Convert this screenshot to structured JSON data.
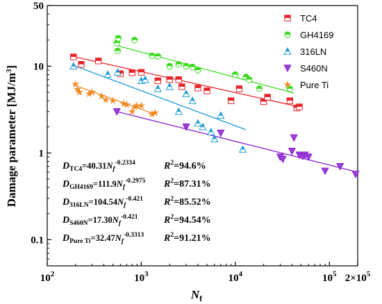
{
  "chart_data": {
    "type": "scatter",
    "xscale": "log",
    "yscale": "log",
    "xlim": [
      100,
      200000
    ],
    "ylim": [
      0.05,
      50
    ],
    "xlabel": "N",
    "xlabel_sub": "f",
    "ylabel": "Damage parameter [MJ/m",
    "ylabel_sup": "3",
    "ylabel_end": "]",
    "x_ticks": [
      {
        "value": 100,
        "base": "10",
        "exp": "2"
      },
      {
        "value": 1000,
        "base": "10",
        "exp": "3"
      },
      {
        "value": 10000,
        "base": "10",
        "exp": "4"
      },
      {
        "value": 100000,
        "base": "10",
        "exp": "5"
      },
      {
        "value": 200000,
        "base": "2×10",
        "exp": "5"
      }
    ],
    "y_ticks": [
      {
        "value": 0.1,
        "label": "0.1"
      },
      {
        "value": 1,
        "label": "1"
      },
      {
        "value": 10,
        "label": "10"
      },
      {
        "value": 50,
        "label": "50"
      }
    ],
    "legend_position": "top-right",
    "series": [
      {
        "name": "TC4",
        "color": "#e8242b",
        "marker": "square",
        "points": [
          [
            190,
            12.8
          ],
          [
            230,
            10.5
          ],
          [
            350,
            11.5
          ],
          [
            600,
            8.2
          ],
          [
            800,
            8.4
          ],
          [
            1000,
            8.5
          ],
          [
            1500,
            6.8
          ],
          [
            2000,
            7.0
          ],
          [
            2500,
            7.0
          ],
          [
            2700,
            5.8
          ],
          [
            4000,
            5.6
          ],
          [
            5000,
            5.2
          ],
          [
            9000,
            4.0
          ],
          [
            11000,
            5.5
          ],
          [
            20000,
            3.9
          ],
          [
            22000,
            4.4
          ],
          [
            38000,
            4.0
          ],
          [
            45000,
            3.3
          ],
          [
            48000,
            3.4
          ]
        ],
        "fit": [
          [
            190,
            12.9
          ],
          [
            48000,
            3.4
          ]
        ]
      },
      {
        "name": "GH4169",
        "color": "#3adb1e",
        "marker": "circle",
        "points": [
          [
            550,
            18.5
          ],
          [
            570,
            21
          ],
          [
            560,
            15
          ],
          [
            850,
            20
          ],
          [
            1300,
            13.2
          ],
          [
            1500,
            13.0
          ],
          [
            2000,
            10.0
          ],
          [
            2500,
            10.5
          ],
          [
            3000,
            10.0
          ],
          [
            3500,
            9.8
          ],
          [
            4000,
            9.0
          ],
          [
            10000,
            8.0
          ],
          [
            13000,
            7.5
          ],
          [
            14000,
            7.0
          ],
          [
            18000,
            5.5
          ],
          [
            38000,
            5.5
          ]
        ],
        "fit": [
          [
            530,
            17.5
          ],
          [
            42000,
            4.9
          ]
        ]
      },
      {
        "name": "316LN",
        "color": "#1b9bd6",
        "marker": "triangle-up",
        "points": [
          [
            190,
            10.0
          ],
          [
            440,
            8.0
          ],
          [
            560,
            8.5
          ],
          [
            1000,
            6.8
          ],
          [
            1100,
            7.0
          ],
          [
            1500,
            5.5
          ],
          [
            2000,
            5.8
          ],
          [
            2500,
            3.0
          ],
          [
            3000,
            4.8
          ],
          [
            3500,
            4.0
          ],
          [
            4000,
            2.2
          ],
          [
            4500,
            2.0
          ],
          [
            5500,
            1.75
          ],
          [
            6000,
            1.45
          ],
          [
            7000,
            2.7
          ],
          [
            12000,
            1.1
          ]
        ],
        "fit": [
          [
            190,
            10.2
          ],
          [
            13000,
            1.85
          ]
        ]
      },
      {
        "name": "S460N",
        "color": "#8a1fd0",
        "marker": "triangle-down",
        "points": [
          [
            550,
            3.0
          ],
          [
            3000,
            2.0
          ],
          [
            7000,
            1.7
          ],
          [
            30000,
            0.9
          ],
          [
            32000,
            0.85
          ],
          [
            40000,
            1.05
          ],
          [
            42000,
            1.5
          ],
          [
            48000,
            0.95
          ],
          [
            52000,
            0.92
          ],
          [
            55000,
            0.95
          ],
          [
            60000,
            0.9
          ],
          [
            90000,
            0.62
          ],
          [
            130000,
            0.7
          ],
          [
            190000,
            0.57
          ]
        ],
        "fit": [
          [
            550,
            3.0
          ],
          [
            200000,
            0.6
          ]
        ]
      },
      {
        "name": "Pure Ti",
        "color": "#f08a24",
        "marker": "star",
        "points": [
          [
            200,
            6.2
          ],
          [
            210,
            5.4
          ],
          [
            220,
            5.0
          ],
          [
            280,
            4.8
          ],
          [
            300,
            5.0
          ],
          [
            380,
            4.5
          ],
          [
            420,
            4.1
          ],
          [
            500,
            4.0
          ],
          [
            650,
            3.7
          ],
          [
            700,
            3.6
          ],
          [
            800,
            3.0
          ],
          [
            850,
            3.4
          ],
          [
            900,
            3.5
          ],
          [
            1000,
            3.5
          ],
          [
            1300,
            2.8
          ],
          [
            1400,
            2.9
          ]
        ],
        "fit": [
          [
            190,
            6.1
          ],
          [
            1400,
            2.8
          ]
        ]
      }
    ],
    "equations": [
      {
        "d_label": "TC4",
        "coef": "40.31",
        "exp": "-0.2334",
        "r2": "94.6%"
      },
      {
        "d_label": "GH4169",
        "coef": "111.9",
        "exp": "-0.2975",
        "r2": "87.31%"
      },
      {
        "d_label": "316LN",
        "coef": "104.54",
        "exp": "-0.421",
        "r2": "85.52%"
      },
      {
        "d_label": "S460N",
        "coef": "17.30",
        "exp": "-0.421",
        "r2": "94.54%"
      },
      {
        "d_label": "Pure Ti",
        "coef": "32.47",
        "exp": "-0.3313",
        "r2": "91.21%"
      }
    ]
  }
}
